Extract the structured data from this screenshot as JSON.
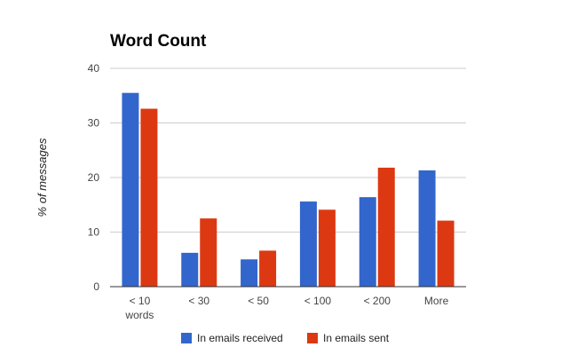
{
  "chart_data": {
    "type": "bar",
    "title": "Word Count",
    "xlabel": "",
    "ylabel": "% of messages",
    "ylim": [
      0,
      40
    ],
    "yticks": [
      0,
      10,
      20,
      30,
      40
    ],
    "grid": true,
    "legend_position": "bottom",
    "categories": [
      [
        "< 10",
        "words"
      ],
      [
        "< 30"
      ],
      [
        "< 50"
      ],
      [
        "< 100"
      ],
      [
        "< 200"
      ],
      [
        "More"
      ]
    ],
    "series": [
      {
        "name": "In emails received",
        "color": "#3366cc",
        "values": [
          35.5,
          6.2,
          5.0,
          15.6,
          16.4,
          21.3
        ]
      },
      {
        "name": "In emails sent",
        "color": "#dc3912",
        "values": [
          32.6,
          12.5,
          6.6,
          14.1,
          21.8,
          12.1
        ]
      }
    ]
  }
}
